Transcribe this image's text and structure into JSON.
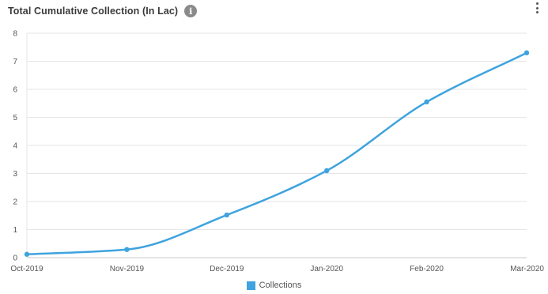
{
  "header": {
    "title": "Total Cumulative Collection (In Lac)",
    "info_icon": "info-icon",
    "menu_icon": "kebab-menu-icon"
  },
  "colors": {
    "series": "#3ea3df",
    "grid": "#e6e6e6",
    "axis": "#c8c8c8"
  },
  "chart_data": {
    "type": "line",
    "title": "Total Cumulative Collection (In Lac)",
    "xlabel": "",
    "ylabel": "",
    "categories": [
      "Oct-2019",
      "Nov-2019",
      "Dec-2019",
      "Jan-2020",
      "Feb-2020",
      "Mar-2020"
    ],
    "series": [
      {
        "name": "Collections",
        "values": [
          0.12,
          0.29,
          1.52,
          3.1,
          5.55,
          7.3
        ]
      }
    ],
    "ylim": [
      0,
      8
    ],
    "yticks": [
      0,
      1,
      2,
      3,
      4,
      5,
      6,
      7,
      8
    ],
    "grid": true,
    "legend": "bottom-center",
    "smooth": true
  }
}
